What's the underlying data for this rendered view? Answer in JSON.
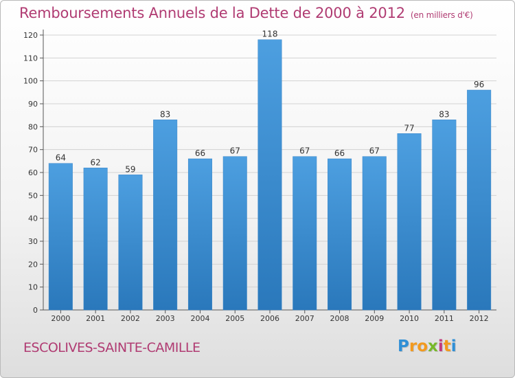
{
  "chart_data": {
    "type": "bar",
    "title": "Remboursements Annuels de la Dette de 2000 à 2012",
    "unit": "(en milliers d'€)",
    "categories": [
      "2000",
      "2001",
      "2002",
      "2003",
      "2004",
      "2005",
      "2006",
      "2007",
      "2008",
      "2009",
      "2010",
      "2011",
      "2012"
    ],
    "values": [
      64,
      62,
      59,
      83,
      66,
      67,
      118,
      67,
      66,
      67,
      77,
      83,
      96
    ],
    "ylim": [
      0,
      120
    ],
    "yticks": [
      0,
      10,
      20,
      30,
      40,
      50,
      60,
      70,
      80,
      90,
      100,
      110,
      120
    ],
    "grid": true,
    "bar_color": "#4d9fe0",
    "bar_color_dark": "#2a78bb"
  },
  "footer": {
    "commune": "ESCOLIVES-SAINTE-CAMILLE",
    "logo_letters": [
      "P",
      "r",
      "o",
      "x",
      "i",
      "t",
      "i"
    ],
    "logo_colors": [
      "#2f8fd6",
      "#f39a1e",
      "#f39a1e",
      "#77b82a",
      "#c23a7e",
      "#f39a1e",
      "#2f8fd6"
    ]
  }
}
